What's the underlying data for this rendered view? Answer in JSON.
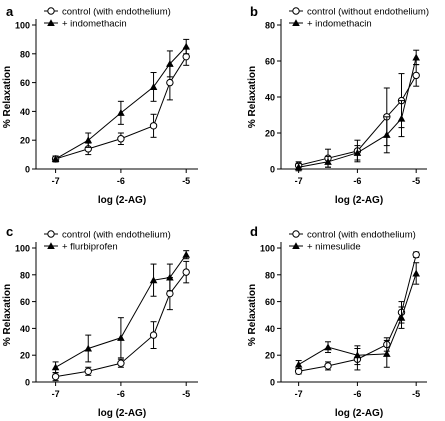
{
  "chart_data": [
    {
      "panel": "a",
      "type": "line",
      "xlabel": "log (2-AG)",
      "ylabel": "% Relaxation",
      "xlim": [
        -7.3,
        -4.85
      ],
      "ylim": [
        0,
        100
      ],
      "xticks": [
        -7,
        -6,
        -5
      ],
      "yticks": [
        0,
        20,
        40,
        60,
        80,
        100
      ],
      "legend_position": "top-left",
      "series": [
        {
          "name": "control (with endothelium)",
          "marker": "open-circle",
          "x": [
            -7,
            -6.5,
            -6,
            -5.5,
            -5.25,
            -5
          ],
          "y": [
            7,
            14,
            21,
            30,
            60,
            78
          ],
          "err": [
            2,
            4,
            4,
            8,
            12,
            6
          ]
        },
        {
          "name": "+ indomethacin",
          "marker": "filled-triangle",
          "x": [
            -7,
            -6.5,
            -6,
            -5.5,
            -5.25,
            -5
          ],
          "y": [
            7,
            20,
            39,
            57,
            73,
            85
          ],
          "err": [
            2,
            5,
            8,
            10,
            9,
            5
          ]
        }
      ]
    },
    {
      "panel": "b",
      "type": "line",
      "xlabel": "log (2-AG)",
      "ylabel": "% Relaxation",
      "xlim": [
        -7.3,
        -4.85
      ],
      "ylim": [
        0,
        80
      ],
      "xticks": [
        -7,
        -6,
        -5
      ],
      "yticks": [
        0,
        20,
        40,
        60,
        80
      ],
      "legend_position": "top-left",
      "series": [
        {
          "name": "control (without endothelium)",
          "marker": "open-circle",
          "x": [
            -7,
            -6.5,
            -6,
            -5.5,
            -5.25,
            -5
          ],
          "y": [
            2,
            6,
            10,
            29,
            38,
            52
          ],
          "err": [
            2,
            5,
            6,
            16,
            15,
            6
          ]
        },
        {
          "name": "+ indomethacin",
          "marker": "filled-triangle",
          "x": [
            -7,
            -6.5,
            -6,
            -5.5,
            -5.25,
            -5
          ],
          "y": [
            1,
            4,
            9,
            19,
            28,
            62
          ],
          "err": [
            2,
            3,
            4,
            10,
            10,
            4
          ]
        }
      ]
    },
    {
      "panel": "c",
      "type": "line",
      "xlabel": "log (2-AG)",
      "ylabel": "% Relaxation",
      "xlim": [
        -7.3,
        -4.85
      ],
      "ylim": [
        0,
        100
      ],
      "xticks": [
        -7,
        -6,
        -5
      ],
      "yticks": [
        0,
        20,
        40,
        60,
        80,
        100
      ],
      "legend_position": "top-left",
      "series": [
        {
          "name": "control (with endothelium)",
          "marker": "open-circle",
          "x": [
            -7,
            -6.5,
            -6,
            -5.5,
            -5.25,
            -5
          ],
          "y": [
            4,
            8,
            14,
            35,
            66,
            82
          ],
          "err": [
            3,
            3,
            3,
            10,
            12,
            8
          ]
        },
        {
          "name": "+ flurbiprofen",
          "marker": "filled-triangle",
          "x": [
            -7,
            -6.5,
            -6,
            -5.5,
            -5.25,
            -5
          ],
          "y": [
            11,
            25,
            33,
            76,
            78,
            95
          ],
          "err": [
            4,
            10,
            15,
            12,
            10,
            3
          ]
        }
      ]
    },
    {
      "panel": "d",
      "type": "line",
      "xlabel": "log (2-AG)",
      "ylabel": "% Relaxation",
      "xlim": [
        -7.3,
        -4.85
      ],
      "ylim": [
        0,
        100
      ],
      "xticks": [
        -7,
        -6,
        -5
      ],
      "yticks": [
        0,
        20,
        40,
        60,
        80,
        100
      ],
      "legend_position": "top-left",
      "series": [
        {
          "name": "control (with endothelium)",
          "marker": "open-circle",
          "x": [
            -7,
            -6.5,
            -6,
            -5.5,
            -5.25,
            -5
          ],
          "y": [
            8,
            12,
            17,
            28,
            52,
            95
          ],
          "err": [
            2,
            3,
            8,
            5,
            8,
            2
          ]
        },
        {
          "name": "+ nimesulide",
          "marker": "filled-triangle",
          "x": [
            -7,
            -6.5,
            -6,
            -5.5,
            -5.25,
            -5
          ],
          "y": [
            13,
            26,
            20,
            21,
            48,
            81
          ],
          "err": [
            3,
            4,
            7,
            10,
            8,
            8
          ]
        }
      ]
    }
  ]
}
